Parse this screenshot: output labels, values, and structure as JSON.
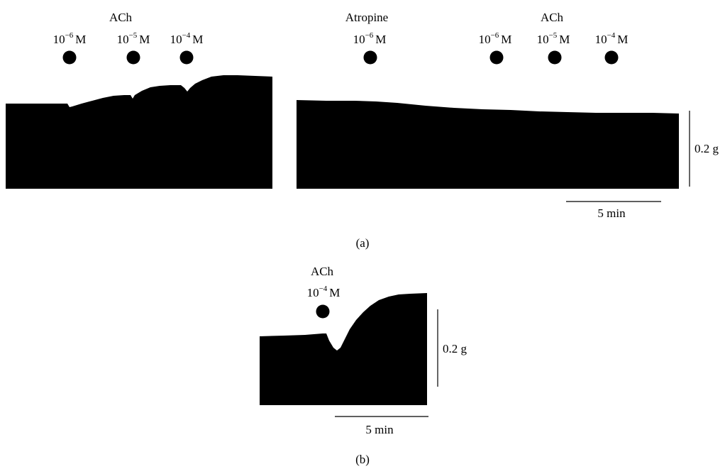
{
  "panels": [
    {
      "id": "a",
      "caption": "(a)",
      "groups": [
        {
          "drug": "ACh",
          "doses": [
            {
              "base": "10",
              "exp": "−6",
              "unit": "M"
            },
            {
              "base": "10",
              "exp": "−5",
              "unit": "M"
            },
            {
              "base": "10",
              "exp": "−4",
              "unit": "M"
            }
          ]
        },
        {
          "drug": "Atropine",
          "doses": [
            {
              "base": "10",
              "exp": "−6",
              "unit": "M"
            }
          ]
        },
        {
          "drug": "ACh",
          "doses": [
            {
              "base": "10",
              "exp": "−6",
              "unit": "M"
            },
            {
              "base": "10",
              "exp": "−5",
              "unit": "M"
            },
            {
              "base": "10",
              "exp": "−4",
              "unit": "M"
            }
          ]
        }
      ],
      "scale_bars": {
        "force": "0.2 g",
        "time": "5 min"
      }
    },
    {
      "id": "b",
      "caption": "(b)",
      "groups": [
        {
          "drug": "ACh",
          "doses": [
            {
              "base": "10",
              "exp": "−4",
              "unit": "M"
            }
          ]
        }
      ],
      "scale_bars": {
        "force": "0.2 g",
        "time": "5 min"
      }
    }
  ]
}
